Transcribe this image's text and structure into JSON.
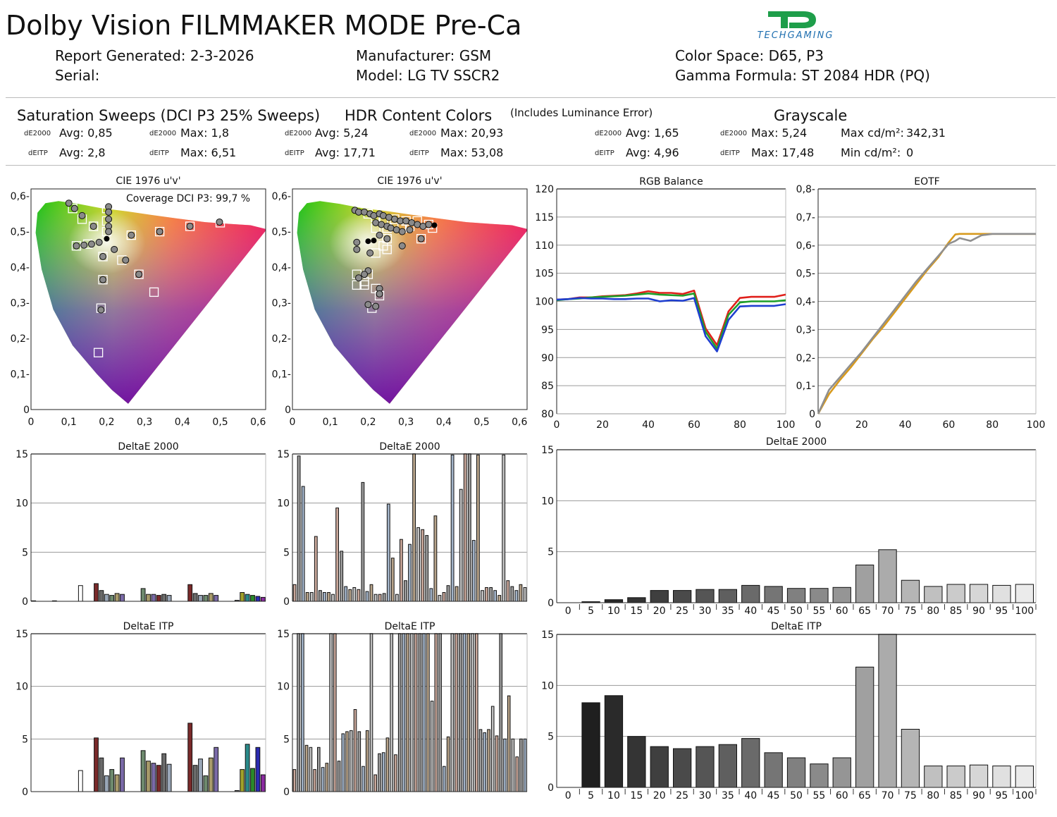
{
  "title": "Dolby Vision FILMMAKER MODE Pre-Ca",
  "logo_text": "TECHGAMING",
  "header": {
    "report_generated": "Report Generated: 2-3-2026",
    "serial": "Serial:",
    "manufacturer": "Manufacturer: GSM",
    "model": "Model: LG TV SSCR2",
    "color_space": "Color Space: D65, P3",
    "gamma_formula": "Gamma Formula: ST 2084 HDR (PQ)"
  },
  "sections": {
    "sat": {
      "title": "Saturation Sweeps (DCI P3 25% Sweeps)",
      "de_avg": "Avg: 0,85",
      "de_max": "Max: 1,8",
      "itp_avg": "Avg: 2,8",
      "itp_max": "Max: 6,51"
    },
    "hdr": {
      "title": "HDR Content Colors",
      "de_avg": "Avg: 5,24",
      "de_max": "Max: 20,93",
      "itp_avg": "Avg: 17,71",
      "itp_max": "Max: 53,08"
    },
    "gray": {
      "note": "(Includes Luminance Error)",
      "title": "Grayscale",
      "de_avg": "Avg: 1,65",
      "de_max": "Max: 5,24",
      "itp_avg": "Avg: 4,96",
      "itp_max": "Max: 17,48",
      "max_label": "Max cd/m²:",
      "max_value": "342,31",
      "min_label": "Min cd/m²:",
      "min_value": "0"
    },
    "de_label": "dE2000",
    "itp_label": "dEITP"
  },
  "colors": {
    "red": "#e0201b",
    "green": "#1e9e2a",
    "blue": "#1f3fd0",
    "eotf_target": "#d79a1e",
    "eotf_measured": "#8f8f8f"
  },
  "chart_data": [
    {
      "id": "cie_sat",
      "type": "scatter",
      "title": "CIE 1976 u'v'",
      "annotation": "Coverage DCI P3:  99,7 %",
      "xlim": [
        0,
        0.62
      ],
      "ylim": [
        0,
        0.62
      ],
      "xticks": [
        "0",
        "0,1",
        "0,2",
        "0,3",
        "0,4",
        "0,5",
        "0,6"
      ],
      "yticks": [
        "0",
        "0,1-",
        "0,2-",
        "0,3-",
        "0,4-",
        "0,5-",
        "0,6-"
      ],
      "targets": [
        [
          0.11,
          0.565
        ],
        [
          0.135,
          0.535
        ],
        [
          0.165,
          0.515
        ],
        [
          0.12,
          0.46
        ],
        [
          0.15,
          0.465
        ],
        [
          0.2,
          0.565
        ],
        [
          0.2,
          0.53
        ],
        [
          0.2,
          0.5
        ],
        [
          0.265,
          0.49
        ],
        [
          0.34,
          0.5
        ],
        [
          0.42,
          0.515
        ],
        [
          0.5,
          0.525
        ],
        [
          0.19,
          0.43
        ],
        [
          0.24,
          0.42
        ],
        [
          0.285,
          0.38
        ],
        [
          0.325,
          0.33
        ],
        [
          0.19,
          0.365
        ],
        [
          0.185,
          0.285
        ],
        [
          0.178,
          0.16
        ]
      ],
      "measured": [
        [
          0.1,
          0.58
        ],
        [
          0.115,
          0.565
        ],
        [
          0.135,
          0.545
        ],
        [
          0.165,
          0.515
        ],
        [
          0.12,
          0.46
        ],
        [
          0.14,
          0.462
        ],
        [
          0.16,
          0.465
        ],
        [
          0.18,
          0.47
        ],
        [
          0.205,
          0.57
        ],
        [
          0.205,
          0.555
        ],
        [
          0.205,
          0.535
        ],
        [
          0.205,
          0.515
        ],
        [
          0.205,
          0.5
        ],
        [
          0.265,
          0.49
        ],
        [
          0.34,
          0.5
        ],
        [
          0.42,
          0.515
        ],
        [
          0.498,
          0.527
        ],
        [
          0.19,
          0.43
        ],
        [
          0.22,
          0.45
        ],
        [
          0.25,
          0.42
        ],
        [
          0.285,
          0.38
        ],
        [
          0.19,
          0.365
        ],
        [
          0.185,
          0.28
        ]
      ],
      "white": [
        0.2,
        0.48
      ]
    },
    {
      "id": "cie_hdr",
      "type": "scatter",
      "title": "CIE 1976 u'v'",
      "xlim": [
        0,
        0.62
      ],
      "ylim": [
        0,
        0.62
      ],
      "xticks": [
        "0",
        "0,1",
        "0,2",
        "0,3",
        "0,4",
        "0,5",
        "0,6"
      ],
      "yticks": [
        "0",
        "0,1-",
        "0,2-",
        "0,3-",
        "0,4-",
        "0,5-",
        "0,6-"
      ],
      "targets": [
        [
          0.2,
          0.55
        ],
        [
          0.22,
          0.54
        ],
        [
          0.24,
          0.53
        ],
        [
          0.27,
          0.535
        ],
        [
          0.3,
          0.53
        ],
        [
          0.33,
          0.53
        ],
        [
          0.36,
          0.52
        ],
        [
          0.22,
          0.51
        ],
        [
          0.25,
          0.51
        ],
        [
          0.29,
          0.51
        ],
        [
          0.31,
          0.515
        ],
        [
          0.34,
          0.48
        ],
        [
          0.37,
          0.51
        ],
        [
          0.25,
          0.48
        ],
        [
          0.24,
          0.46
        ],
        [
          0.25,
          0.45
        ],
        [
          0.22,
          0.44
        ],
        [
          0.17,
          0.38
        ],
        [
          0.2,
          0.38
        ],
        [
          0.17,
          0.35
        ],
        [
          0.19,
          0.36
        ],
        [
          0.19,
          0.35
        ],
        [
          0.22,
          0.34
        ],
        [
          0.23,
          0.32
        ],
        [
          0.21,
          0.285
        ]
      ],
      "measured": [
        [
          0.165,
          0.56
        ],
        [
          0.175,
          0.555
        ],
        [
          0.19,
          0.555
        ],
        [
          0.205,
          0.55
        ],
        [
          0.215,
          0.545
        ],
        [
          0.23,
          0.55
        ],
        [
          0.24,
          0.545
        ],
        [
          0.255,
          0.54
        ],
        [
          0.27,
          0.535
        ],
        [
          0.285,
          0.53
        ],
        [
          0.3,
          0.53
        ],
        [
          0.315,
          0.525
        ],
        [
          0.33,
          0.52
        ],
        [
          0.345,
          0.515
        ],
        [
          0.36,
          0.52
        ],
        [
          0.22,
          0.525
        ],
        [
          0.235,
          0.52
        ],
        [
          0.25,
          0.515
        ],
        [
          0.26,
          0.51
        ],
        [
          0.275,
          0.505
        ],
        [
          0.29,
          0.5
        ],
        [
          0.31,
          0.505
        ],
        [
          0.34,
          0.48
        ],
        [
          0.29,
          0.46
        ],
        [
          0.25,
          0.48
        ],
        [
          0.23,
          0.49
        ],
        [
          0.17,
          0.47
        ],
        [
          0.17,
          0.45
        ],
        [
          0.205,
          0.44
        ],
        [
          0.2,
          0.39
        ],
        [
          0.19,
          0.38
        ],
        [
          0.175,
          0.37
        ],
        [
          0.23,
          0.34
        ],
        [
          0.23,
          0.325
        ],
        [
          0.2,
          0.295
        ],
        [
          0.22,
          0.29
        ]
      ],
      "white": [
        0.215,
        0.475
      ],
      "black": [
        [
          0.375,
          0.518
        ],
        [
          0.2,
          0.473
        ]
      ]
    },
    {
      "id": "rgb_balance",
      "type": "line",
      "title": "RGB Balance",
      "xlim": [
        0,
        100
      ],
      "ylim": [
        80,
        120
      ],
      "xticks": [
        "0",
        "20",
        "40",
        "60",
        "80",
        "100"
      ],
      "yticks": [
        "80",
        "85",
        "90",
        "95",
        "100",
        "105",
        "110",
        "115",
        "120"
      ],
      "x": [
        0,
        5,
        10,
        15,
        20,
        25,
        30,
        35,
        40,
        45,
        50,
        55,
        60,
        65,
        70,
        75,
        80,
        85,
        90,
        95,
        100
      ],
      "series": [
        {
          "color": "red",
          "values": [
            100.3,
            100.4,
            100.7,
            100.7,
            100.9,
            101,
            101.1,
            101.4,
            101.8,
            101.5,
            101.5,
            101.3,
            101.9,
            95.2,
            92.2,
            98.2,
            100.6,
            100.8,
            100.8,
            100.8,
            101.2
          ]
        },
        {
          "color": "green",
          "values": [
            100.2,
            100.4,
            100.5,
            100.7,
            100.8,
            100.9,
            101,
            101.2,
            101.4,
            101.2,
            101.1,
            101,
            101.4,
            94.6,
            91.6,
            97.6,
            99.8,
            100,
            100,
            100,
            100.2
          ]
        },
        {
          "color": "blue",
          "values": [
            100.3,
            100.4,
            100.6,
            100.5,
            100.5,
            100.4,
            100.4,
            100.5,
            100.5,
            100,
            100.2,
            100.1,
            100.6,
            93.8,
            91.1,
            96.7,
            99.1,
            99.2,
            99.2,
            99.2,
            99.5
          ]
        }
      ]
    },
    {
      "id": "eotf",
      "type": "line",
      "title": "EOTF",
      "xlim": [
        0,
        100
      ],
      "ylim": [
        0,
        0.8
      ],
      "xticks": [
        "0",
        "20",
        "40",
        "60",
        "80",
        "100"
      ],
      "yticks": [
        "0",
        "0,1-",
        "0,2-",
        "0,3-",
        "0,4-",
        "0,5-",
        "0,6-",
        "0,7-",
        "0,8-"
      ],
      "x": [
        0,
        5,
        10,
        15,
        20,
        25,
        30,
        35,
        40,
        45,
        50,
        55,
        60,
        63,
        65,
        70,
        75,
        80,
        85,
        90,
        95,
        100
      ],
      "series": [
        {
          "color": "eotf_target",
          "values": [
            0,
            0.07,
            0.12,
            0.165,
            0.215,
            0.265,
            0.31,
            0.36,
            0.41,
            0.46,
            0.51,
            0.555,
            0.61,
            0.638,
            0.64,
            0.64,
            0.64,
            0.64,
            0.64,
            0.64,
            0.64,
            0.64
          ]
        },
        {
          "color": "eotf_measured",
          "values": [
            0,
            0.085,
            0.13,
            0.175,
            0.22,
            0.27,
            0.32,
            0.37,
            0.42,
            0.47,
            0.515,
            0.56,
            0.605,
            0.615,
            0.625,
            0.615,
            0.635,
            0.64,
            0.64,
            0.64,
            0.64,
            0.64
          ]
        }
      ]
    },
    {
      "id": "sat_de2000",
      "type": "bar",
      "title": "DeltaE 2000",
      "ylim": [
        0,
        15
      ],
      "yticks": [
        "0",
        "5",
        "10",
        "15"
      ],
      "values": [
        0.05,
        0,
        0,
        0,
        0.05,
        0,
        0,
        0,
        0,
        1.6,
        0,
        0,
        1.8,
        1.1,
        0.7,
        0.6,
        0.8,
        0.7,
        0,
        0,
        0,
        1.3,
        0.7,
        0.7,
        0.6,
        0.7,
        0.6,
        0,
        0,
        0,
        1.7,
        0.8,
        0.6,
        0.6,
        0.8,
        0.6,
        0,
        0,
        0,
        0.1,
        0.9,
        0.7,
        0.6,
        0.5,
        0.4
      ]
    },
    {
      "id": "hdr_de2000",
      "type": "bar",
      "title": "DeltaE 2000",
      "ylim": [
        0,
        15
      ],
      "yticks": [
        "0",
        "5",
        "10",
        "15"
      ],
      "values": [
        1.7,
        14.8,
        11.7,
        0.9,
        0.9,
        6.6,
        1.1,
        0.9,
        0.9,
        0.7,
        9.5,
        5.1,
        1.5,
        1.2,
        1.4,
        1.2,
        12.1,
        1.0,
        1.7,
        0.7,
        0.7,
        0.8,
        9.9,
        4.4,
        0.7,
        6.3,
        2.1,
        5.8,
        15,
        7.5,
        7.3,
        6.7,
        1.3,
        8.7,
        0.6,
        0.9,
        1.6,
        14.9,
        1.5,
        11.4,
        15,
        15,
        6.2,
        14.9,
        1.1,
        1.4,
        1.4,
        1.1,
        0.6,
        14.9,
        2.1,
        1.5,
        1.1,
        1.7,
        1.4
      ]
    },
    {
      "id": "gray_de2000",
      "type": "bar",
      "title": "DeltaE 2000",
      "ylim": [
        0,
        15
      ],
      "yticks": [
        "0",
        "5",
        "10",
        "15"
      ],
      "categories": [
        "0",
        "5",
        "10",
        "15",
        "20",
        "25",
        "30",
        "35",
        "40",
        "45",
        "50",
        "55",
        "60",
        "65",
        "70",
        "75",
        "80",
        "85",
        "90",
        "95",
        "100"
      ],
      "values": [
        0,
        0.1,
        0.3,
        0.5,
        1.2,
        1.2,
        1.3,
        1.3,
        1.7,
        1.6,
        1.4,
        1.4,
        1.5,
        3.7,
        5.2,
        2.2,
        1.6,
        1.8,
        1.8,
        1.7,
        1.8
      ]
    },
    {
      "id": "sat_itp",
      "type": "bar",
      "title": "DeltaE ITP",
      "ylim": [
        0,
        15
      ],
      "yticks": [
        "0",
        "5",
        "10",
        "15"
      ],
      "values": [
        0,
        0,
        0,
        0,
        0,
        0,
        0,
        0,
        0,
        2,
        0,
        0,
        5.1,
        3.2,
        1.5,
        2.1,
        1.6,
        3.2,
        0,
        0,
        0,
        3.9,
        2.9,
        2.7,
        2.5,
        3.6,
        2.6,
        0,
        0,
        0,
        6.5,
        2.5,
        3.1,
        1.5,
        3.2,
        4.2,
        0,
        0,
        0,
        0.1,
        2.1,
        4.5,
        2.2,
        4.2,
        1.6
      ]
    },
    {
      "id": "hdr_itp",
      "type": "bar",
      "title": "DeltaE ITP",
      "ylim": [
        0,
        15
      ],
      "yticks": [
        "0",
        "5",
        "10",
        "15"
      ],
      "values": [
        2.1,
        15,
        15,
        4.4,
        4.2,
        2.1,
        4.2,
        2.3,
        2.7,
        15,
        15,
        2.9,
        5.5,
        5.7,
        5.8,
        7.8,
        5.7,
        2.4,
        5.8,
        15,
        1.6,
        3.6,
        3.7,
        5.1,
        15,
        3.5,
        15,
        15,
        15,
        15,
        15,
        15,
        15,
        15,
        8.6,
        15,
        15,
        2.4,
        5.2,
        15,
        15,
        15,
        15,
        15,
        15,
        15,
        5.9,
        5.6,
        5.9,
        8.1,
        5.3,
        15,
        5,
        9.1,
        5,
        3.3,
        5,
        5
      ]
    },
    {
      "id": "gray_itp",
      "type": "bar",
      "title": "DeltaE ITP",
      "ylim": [
        0,
        15
      ],
      "yticks": [
        "0",
        "5",
        "10",
        "15"
      ],
      "categories": [
        "0",
        "5",
        "10",
        "15",
        "20",
        "25",
        "30",
        "35",
        "40",
        "45",
        "50",
        "55",
        "60",
        "65",
        "70",
        "75",
        "80",
        "85",
        "90",
        "95",
        "100"
      ],
      "values": [
        0,
        8.3,
        9,
        5,
        4,
        3.8,
        4,
        4.2,
        4.8,
        3.4,
        2.9,
        2.3,
        2.9,
        11.8,
        15,
        5.7,
        2.1,
        2.1,
        2.2,
        2.1,
        2.1
      ]
    }
  ]
}
